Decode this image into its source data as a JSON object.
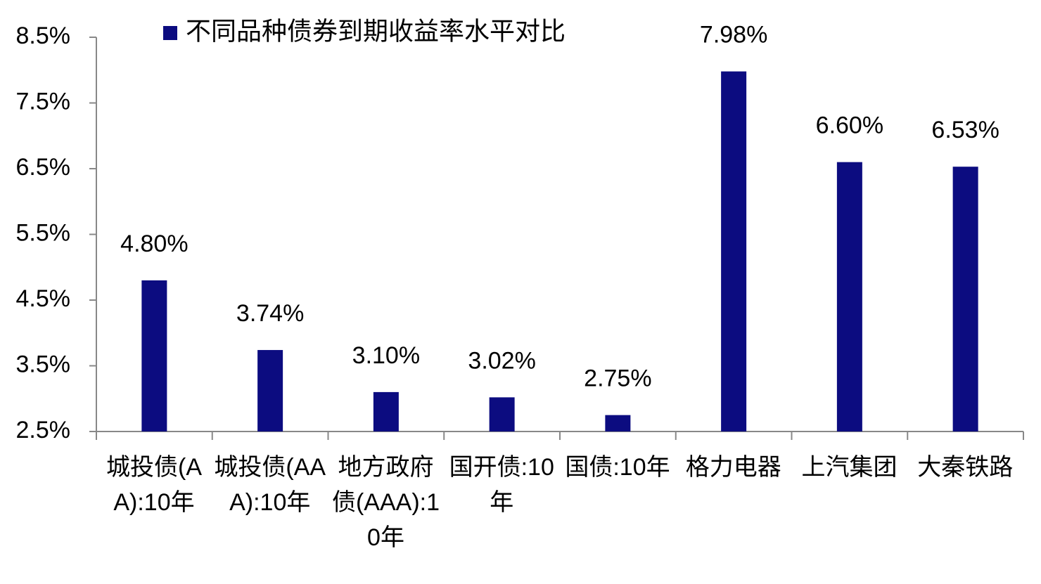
{
  "chart_data": {
    "type": "bar",
    "categories": [
      "城投债(AA):10年",
      "城投债(AAA):10年",
      "地方政府债(AAA):10年",
      "国开债:10年",
      "国债:10年",
      "格力电器",
      "上汽集团",
      "大秦铁路"
    ],
    "series": [
      {
        "name": "不同品种债券到期收益率水平对比",
        "color": "#0c0c80",
        "values": [
          4.8,
          3.74,
          3.1,
          3.02,
          2.75,
          7.98,
          6.6,
          6.53
        ],
        "value_labels": [
          "4.80%",
          "3.74%",
          "3.10%",
          "3.02%",
          "2.75%",
          "7.98%",
          "6.60%",
          "6.53%"
        ]
      }
    ],
    "ylim": [
      2.5,
      8.5
    ],
    "yticks": [
      {
        "value": 2.5,
        "label": "2.5%"
      },
      {
        "value": 3.5,
        "label": "3.5%"
      },
      {
        "value": 4.5,
        "label": "4.5%"
      },
      {
        "value": 5.5,
        "label": "5.5%"
      },
      {
        "value": 6.5,
        "label": "6.5%"
      },
      {
        "value": 7.5,
        "label": "7.5%"
      },
      {
        "value": 8.5,
        "label": "8.5%"
      }
    ],
    "grid": false
  }
}
